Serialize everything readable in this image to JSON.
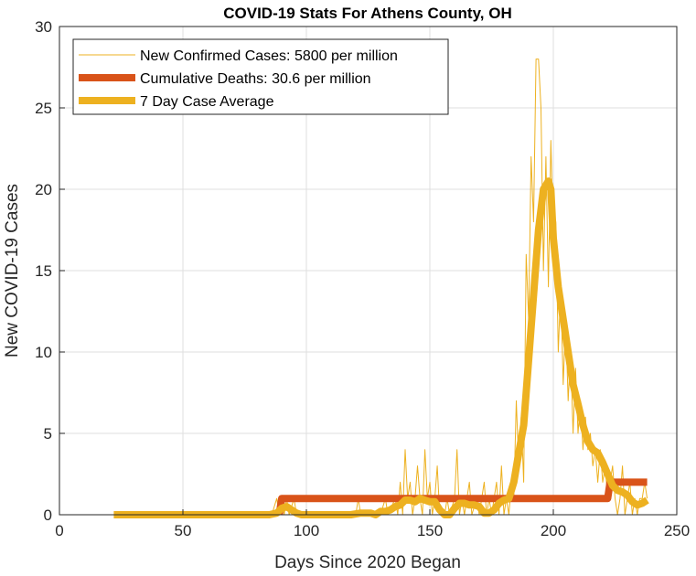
{
  "chart_data": {
    "type": "line",
    "title": "COVID-19 Stats For Athens County, OH",
    "xlabel": "Days Since 2020 Began",
    "ylabel": "New COVID-19 Cases",
    "xlim": [
      0,
      250
    ],
    "ylim": [
      0,
      30
    ],
    "xticks": [
      0,
      50,
      100,
      150,
      200,
      250
    ],
    "yticks": [
      0,
      5,
      10,
      15,
      20,
      25,
      30
    ],
    "grid": true,
    "legend_position": "top-left",
    "series": [
      {
        "name": "New Confirmed Cases: 5800 per million",
        "color": "#EDB120",
        "style": "thin",
        "points": [
          [
            22,
            0
          ],
          [
            80,
            0
          ],
          [
            86,
            0
          ],
          [
            88,
            1
          ],
          [
            89,
            0
          ],
          [
            90,
            1
          ],
          [
            91,
            0
          ],
          [
            92,
            1
          ],
          [
            93,
            0
          ],
          [
            95,
            1
          ],
          [
            96,
            0
          ],
          [
            120,
            0
          ],
          [
            121,
            1
          ],
          [
            122,
            0
          ],
          [
            130,
            0
          ],
          [
            132,
            1
          ],
          [
            133,
            0
          ],
          [
            136,
            1
          ],
          [
            137,
            0
          ],
          [
            138,
            2
          ],
          [
            139,
            0
          ],
          [
            140,
            4
          ],
          [
            141,
            1
          ],
          [
            142,
            2
          ],
          [
            143,
            0
          ],
          [
            144,
            1
          ],
          [
            145,
            3
          ],
          [
            146,
            1
          ],
          [
            147,
            0
          ],
          [
            148,
            4
          ],
          [
            149,
            1
          ],
          [
            150,
            2
          ],
          [
            151,
            0
          ],
          [
            152,
            1
          ],
          [
            153,
            3
          ],
          [
            154,
            0
          ],
          [
            156,
            0
          ],
          [
            157,
            1
          ],
          [
            158,
            0
          ],
          [
            160,
            1
          ],
          [
            161,
            4
          ],
          [
            162,
            0
          ],
          [
            163,
            1
          ],
          [
            164,
            0
          ],
          [
            166,
            2
          ],
          [
            167,
            0
          ],
          [
            169,
            1
          ],
          [
            170,
            0
          ],
          [
            172,
            2
          ],
          [
            173,
            0
          ],
          [
            174,
            1
          ],
          [
            175,
            0
          ],
          [
            177,
            2
          ],
          [
            178,
            0
          ],
          [
            179,
            3
          ],
          [
            180,
            0
          ],
          [
            181,
            1
          ],
          [
            182,
            0
          ],
          [
            183,
            2
          ],
          [
            184,
            1
          ],
          [
            185,
            7
          ],
          [
            186,
            3
          ],
          [
            187,
            6
          ],
          [
            188,
            2
          ],
          [
            189,
            16
          ],
          [
            190,
            12
          ],
          [
            191,
            22
          ],
          [
            192,
            18
          ],
          [
            193,
            28
          ],
          [
            194,
            28
          ],
          [
            195,
            25
          ],
          [
            196,
            15
          ],
          [
            197,
            22
          ],
          [
            198,
            14
          ],
          [
            199,
            23
          ],
          [
            200,
            17
          ],
          [
            201,
            18
          ],
          [
            202,
            10
          ],
          [
            203,
            14
          ],
          [
            204,
            8
          ],
          [
            205,
            12
          ],
          [
            206,
            7
          ],
          [
            207,
            10
          ],
          [
            208,
            5
          ],
          [
            209,
            9
          ],
          [
            210,
            5
          ],
          [
            211,
            7
          ],
          [
            212,
            4
          ],
          [
            213,
            6
          ],
          [
            214,
            4
          ],
          [
            215,
            5
          ],
          [
            216,
            3
          ],
          [
            217,
            4
          ],
          [
            218,
            2
          ],
          [
            219,
            4
          ],
          [
            220,
            2
          ],
          [
            221,
            3
          ],
          [
            222,
            1
          ],
          [
            223,
            2
          ],
          [
            224,
            3
          ],
          [
            225,
            1
          ],
          [
            226,
            0
          ],
          [
            227,
            1
          ],
          [
            228,
            3
          ],
          [
            229,
            0
          ],
          [
            230,
            1
          ],
          [
            231,
            2
          ],
          [
            232,
            0
          ],
          [
            233,
            1
          ],
          [
            234,
            0
          ],
          [
            235,
            1
          ],
          [
            236,
            1
          ],
          [
            237,
            2
          ],
          [
            238,
            1
          ]
        ]
      },
      {
        "name": "Cumulative Deaths: 30.6 per million",
        "color": "#D95319",
        "style": "thick",
        "points": [
          [
            89,
            0
          ],
          [
            90,
            1
          ],
          [
            222,
            1
          ],
          [
            223,
            2
          ],
          [
            238,
            2
          ]
        ]
      },
      {
        "name": "7 Day Case Average",
        "color": "#EDB120",
        "style": "thick",
        "points": [
          [
            22,
            0
          ],
          [
            85,
            0
          ],
          [
            88,
            0.1
          ],
          [
            90,
            0.4
          ],
          [
            92,
            0.5
          ],
          [
            94,
            0.3
          ],
          [
            96,
            0.1
          ],
          [
            98,
            0
          ],
          [
            118,
            0
          ],
          [
            122,
            0.1
          ],
          [
            126,
            0.1
          ],
          [
            128,
            0
          ],
          [
            130,
            0.2
          ],
          [
            132,
            0.2
          ],
          [
            134,
            0.3
          ],
          [
            136,
            0.5
          ],
          [
            138,
            0.6
          ],
          [
            140,
            0.9
          ],
          [
            142,
            0.9
          ],
          [
            144,
            0.8
          ],
          [
            146,
            1.0
          ],
          [
            148,
            0.9
          ],
          [
            150,
            0.8
          ],
          [
            152,
            0.8
          ],
          [
            154,
            0.3
          ],
          [
            156,
            0
          ],
          [
            158,
            0
          ],
          [
            160,
            0.4
          ],
          [
            162,
            0.7
          ],
          [
            164,
            0.7
          ],
          [
            166,
            0.6
          ],
          [
            168,
            0.6
          ],
          [
            170,
            0.5
          ],
          [
            172,
            0.1
          ],
          [
            174,
            0.1
          ],
          [
            176,
            0.3
          ],
          [
            178,
            0.7
          ],
          [
            180,
            0.9
          ],
          [
            182,
            1.0
          ],
          [
            184,
            2.0
          ],
          [
            186,
            3.8
          ],
          [
            188,
            5.5
          ],
          [
            190,
            9.5
          ],
          [
            192,
            13.5
          ],
          [
            194,
            17.5
          ],
          [
            196,
            20
          ],
          [
            198,
            20.5
          ],
          [
            199,
            20
          ],
          [
            200,
            17
          ],
          [
            202,
            14
          ],
          [
            204,
            12
          ],
          [
            206,
            10
          ],
          [
            208,
            8
          ],
          [
            210,
            6.8
          ],
          [
            212,
            5.5
          ],
          [
            214,
            4.5
          ],
          [
            216,
            4.0
          ],
          [
            218,
            3.8
          ],
          [
            220,
            3.2
          ],
          [
            222,
            2.5
          ],
          [
            224,
            1.8
          ],
          [
            226,
            1.5
          ],
          [
            228,
            1.4
          ],
          [
            230,
            1.2
          ],
          [
            232,
            0.8
          ],
          [
            234,
            0.6
          ],
          [
            236,
            0.7
          ],
          [
            238,
            0.9
          ]
        ]
      }
    ]
  }
}
